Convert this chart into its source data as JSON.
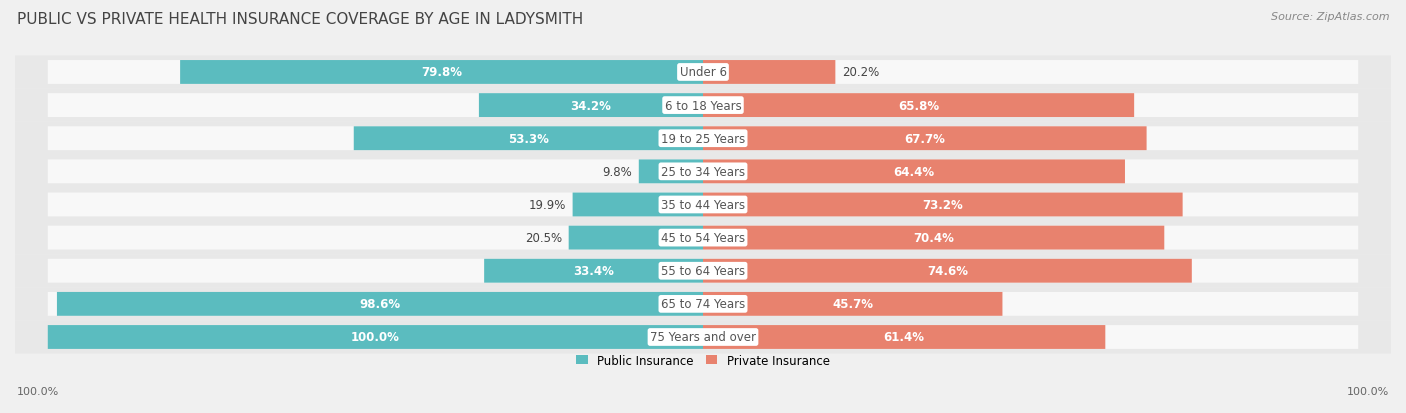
{
  "title": "PUBLIC VS PRIVATE HEALTH INSURANCE COVERAGE BY AGE IN LADYSMITH",
  "source": "Source: ZipAtlas.com",
  "categories": [
    "Under 6",
    "6 to 18 Years",
    "19 to 25 Years",
    "25 to 34 Years",
    "35 to 44 Years",
    "45 to 54 Years",
    "55 to 64 Years",
    "65 to 74 Years",
    "75 Years and over"
  ],
  "public_values": [
    79.8,
    34.2,
    53.3,
    9.8,
    19.9,
    20.5,
    33.4,
    98.6,
    100.0
  ],
  "private_values": [
    20.2,
    65.8,
    67.7,
    64.4,
    73.2,
    70.4,
    74.6,
    45.7,
    61.4
  ],
  "public_color": "#5bbcbf",
  "private_color": "#e8826e",
  "public_label": "Public Insurance",
  "private_label": "Private Insurance",
  "bg_color": "#f0f0f0",
  "row_bg_color": "#e8e8e8",
  "bar_row_color": "#ffffff",
  "label_color_dark": "#333333",
  "label_color_white": "#ffffff",
  "axis_label_left": "100.0%",
  "axis_label_right": "100.0%",
  "title_fontsize": 11,
  "source_fontsize": 8,
  "bar_label_fontsize": 8.5,
  "category_fontsize": 8.5,
  "legend_fontsize": 8.5,
  "axis_tick_fontsize": 8
}
